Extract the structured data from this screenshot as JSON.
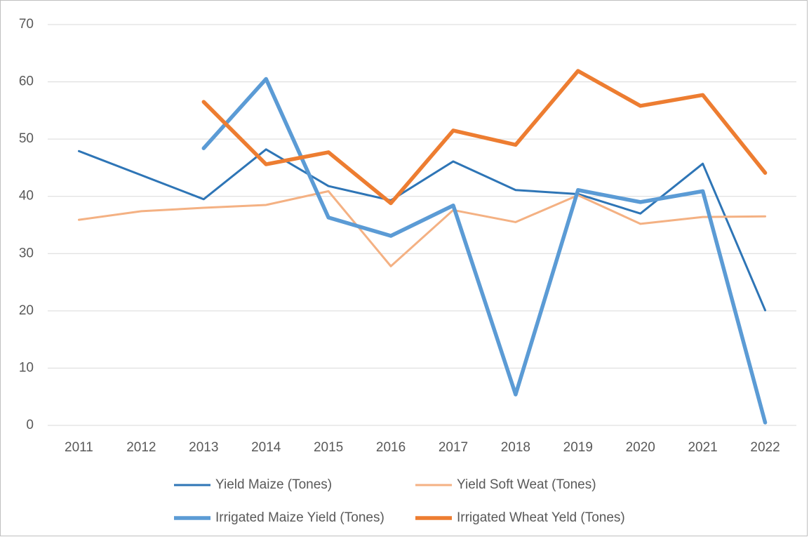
{
  "chart_data": {
    "type": "line",
    "categories": [
      "2011",
      "2012",
      "2013",
      "2014",
      "2015",
      "2016",
      "2017",
      "2018",
      "2019",
      "2020",
      "2021",
      "2022"
    ],
    "series": [
      {
        "name": "Yield Maize (Tones)",
        "color": "#2e75b6",
        "line_width": 3,
        "values": [
          47.9,
          43.7,
          39.5,
          48.2,
          41.8,
          39.3,
          46.1,
          41.1,
          40.4,
          37.0,
          45.7,
          20.1
        ]
      },
      {
        "name": "Yield Soft Weat (Tones)",
        "color": "#f4b183",
        "line_width": 3,
        "values": [
          35.9,
          37.4,
          38.0,
          38.5,
          40.9,
          27.8,
          37.6,
          35.5,
          40.2,
          35.2,
          36.4,
          36.5
        ]
      },
      {
        "name": "Irrigated Maize Yield (Tones)",
        "color": "#5b9bd5",
        "line_width": 5.5,
        "values": [
          null,
          null,
          48.4,
          60.5,
          36.3,
          33.1,
          38.4,
          5.4,
          41.1,
          39.0,
          40.9,
          0.5
        ]
      },
      {
        "name": "Irrigated Wheat Yeld (Tones)",
        "color": "#ed7d31",
        "line_width": 5.5,
        "values": [
          null,
          null,
          56.5,
          45.6,
          47.7,
          38.8,
          51.5,
          49.0,
          61.9,
          55.8,
          57.7,
          44.1
        ]
      }
    ],
    "ylim": [
      0,
      70
    ],
    "yticks": [
      0,
      10,
      20,
      30,
      40,
      50,
      60,
      70
    ],
    "grid": true,
    "legend": "bottom"
  }
}
